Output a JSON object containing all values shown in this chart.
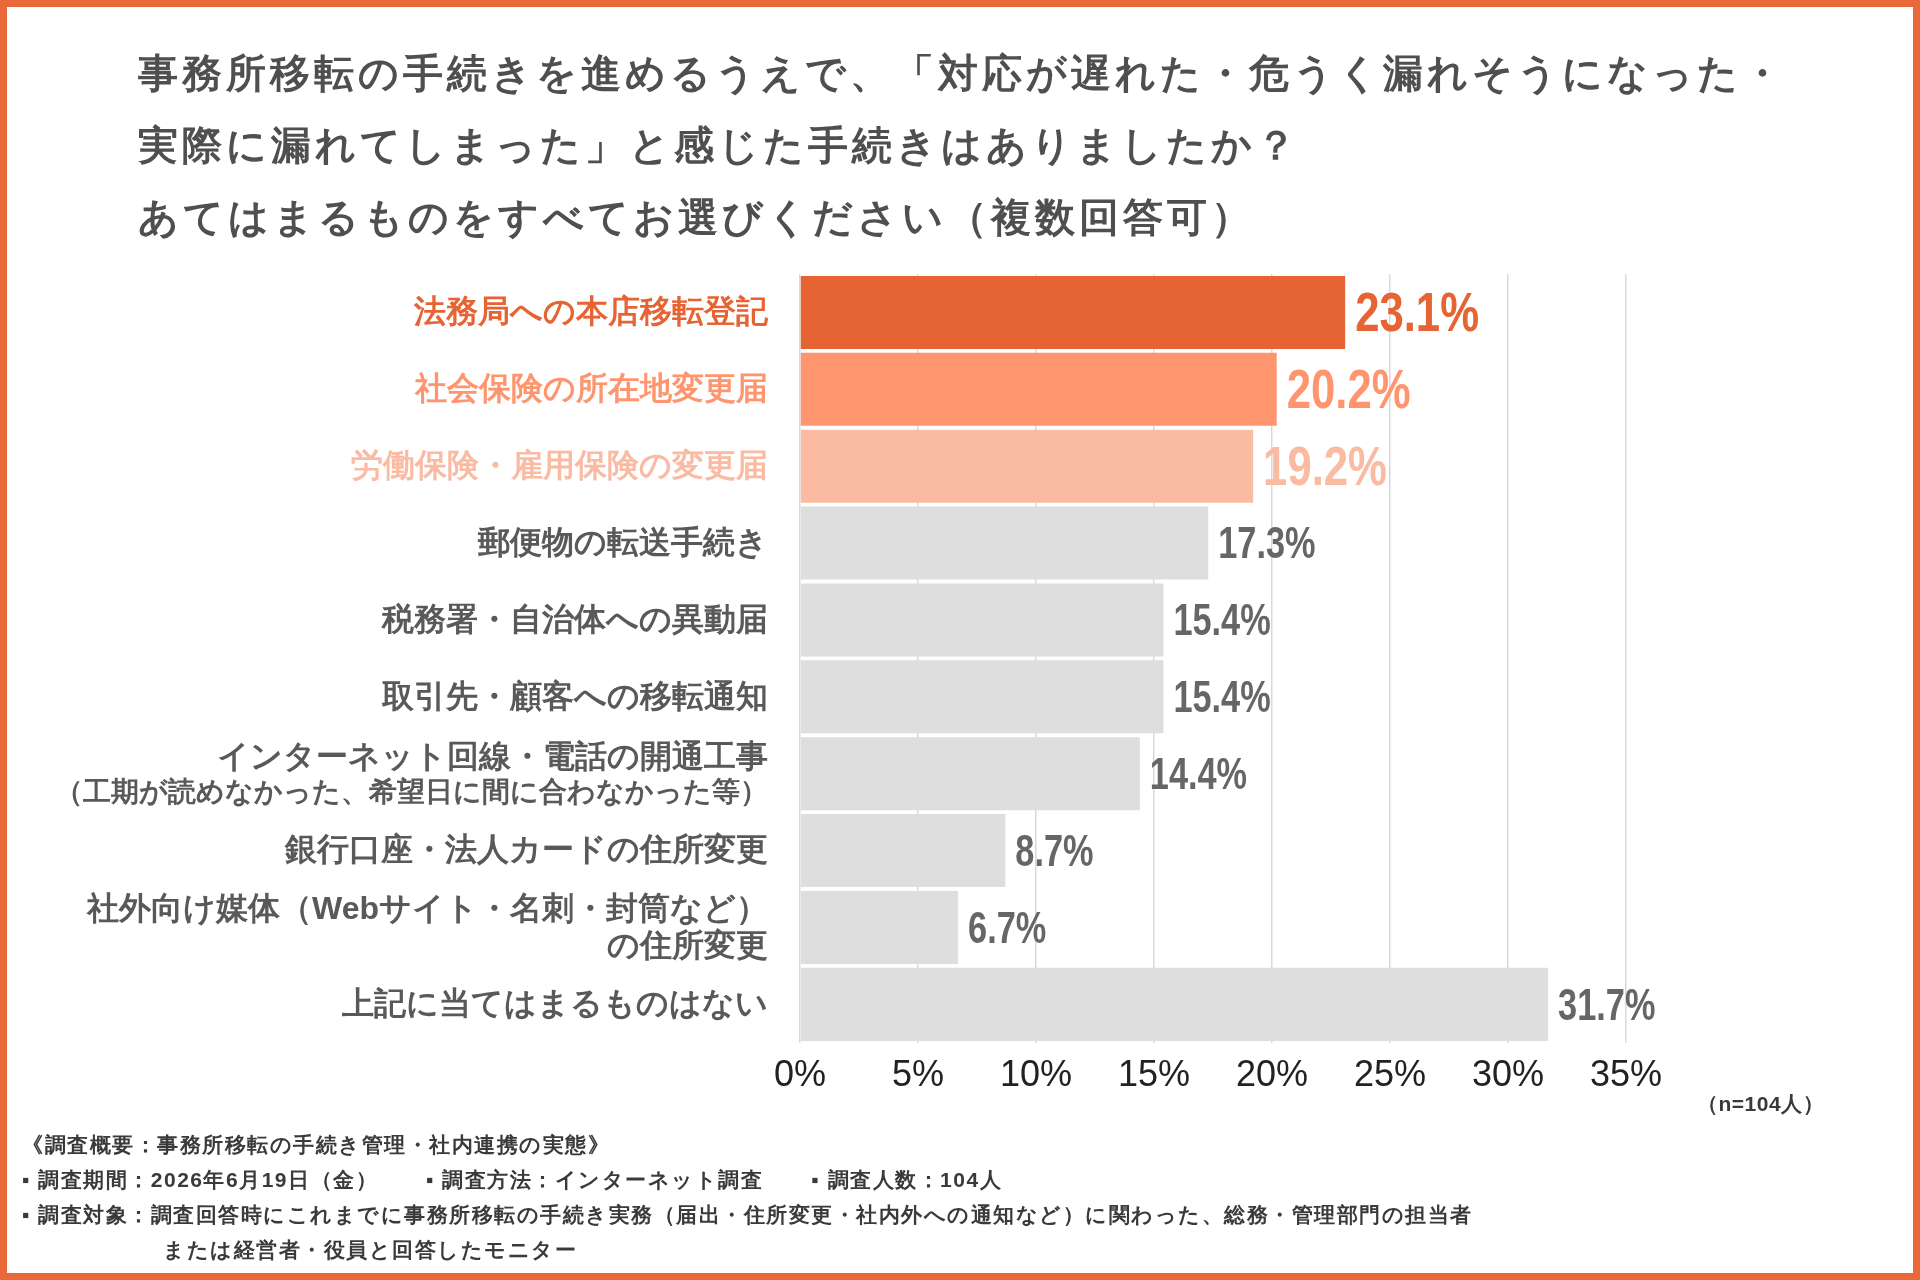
{
  "chart_data": {
    "type": "bar",
    "orientation": "horizontal",
    "title": "事務所移転の手続きを進めるうえで、「対応が遅れた・危うく漏れそうになった・実際に漏れてしまった」と感じた手続きはありましたか？",
    "subtitle": "あてはまるものをすべてお選びください（複数回答可）",
    "categories": [
      "法務局への本店移転登記",
      "社会保険の所在地変更届",
      "労働保険・雇用保険の変更届",
      "郵便物の転送手続き",
      "税務署・自治体への異動届",
      "取引先・顧客への移転通知",
      "インターネット回線・電話の開通工事（工期が読めなかった、希望日に間に合わなかった等）",
      "銀行口座・法人カードの住所変更",
      "社外向け媒体（Webサイト・名刺・封筒など）の住所変更",
      "上記に当てはまるものはない"
    ],
    "values": [
      23.1,
      20.2,
      19.2,
      17.3,
      15.4,
      15.4,
      14.4,
      8.7,
      6.7,
      31.7
    ],
    "colors": [
      "#e66434",
      "#ff956f",
      "#fbbba2",
      "#dedede",
      "#dedede",
      "#dedede",
      "#dedede",
      "#dedede",
      "#dedede",
      "#dedede"
    ],
    "value_labels": [
      "23.1%",
      "20.2%",
      "19.2%",
      "17.3%",
      "15.4%",
      "15.4%",
      "14.4%",
      "8.7%",
      "6.7%",
      "31.7%"
    ],
    "xlim": [
      0,
      35
    ],
    "xticks": [
      {
        "value": 0,
        "label": "0%"
      },
      {
        "value": 5,
        "label": "5%"
      },
      {
        "value": 10,
        "label": "10%"
      },
      {
        "value": 15,
        "label": "15%"
      },
      {
        "value": 20,
        "label": "20%"
      },
      {
        "value": 25,
        "label": "25%"
      },
      {
        "value": 30,
        "label": "30%"
      },
      {
        "value": 35,
        "label": "35%"
      }
    ],
    "grid": "x",
    "annotations": [
      "（n=104人）",
      "《調査概要：事務所移転の手続き管理・社内連携の実態》",
      "▪ 調査期間：2026年6月19日（金）",
      "▪ 調査方法：インターネット調査",
      "▪ 調査対象：調査回答時にこれまでに事務所移転の手続き実務（届出・住所変更・社内外への通知など）に関わった、総務・管理部門の担当者または経営者・役員と回答したモニター",
      "▪ 調査人数：104人"
    ]
  }
}
